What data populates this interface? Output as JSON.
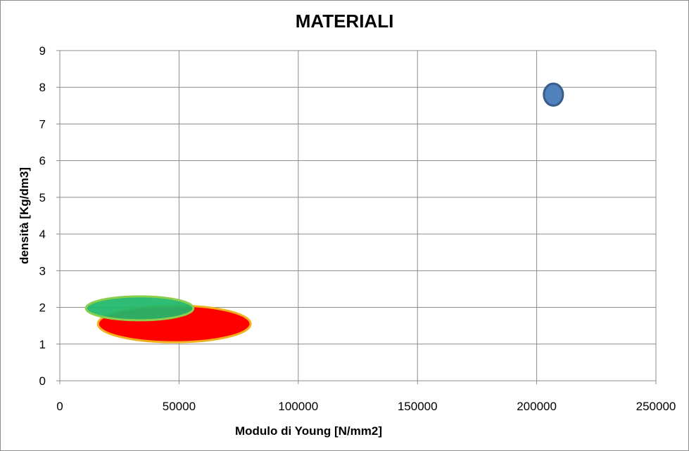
{
  "chart_data": {
    "type": "scatter",
    "subtype": "bubble-ellipse",
    "title": "MATERIALI",
    "xlabel": "Modulo di Young [N/mm2]",
    "ylabel": "densità [Kg/dm3]",
    "xlim": [
      0,
      250000
    ],
    "ylim": [
      0,
      9
    ],
    "x_ticks": [
      0,
      50000,
      100000,
      150000,
      200000,
      250000
    ],
    "y_ticks": [
      0,
      1,
      2,
      3,
      4,
      5,
      6,
      7,
      8,
      9
    ],
    "grid": true,
    "legend": "none",
    "series": [
      {
        "x_range": [
          16000,
          80000
        ],
        "y_range": [
          1.05,
          2.05
        ],
        "color": "#ff0000",
        "edge": "#f2b21f"
      },
      {
        "x_range": [
          11000,
          56000
        ],
        "y_range": [
          1.65,
          2.3
        ],
        "color": "#1fb86a",
        "edge": "#8ccf4e"
      },
      {
        "x_range": [
          203000,
          211000
        ],
        "y_range": [
          7.5,
          8.1
        ],
        "color": "#4f81bd",
        "edge": "#385d8a"
      }
    ],
    "colors": {
      "grid": "#8c8c8c",
      "frame": "#8c8c8c"
    }
  }
}
